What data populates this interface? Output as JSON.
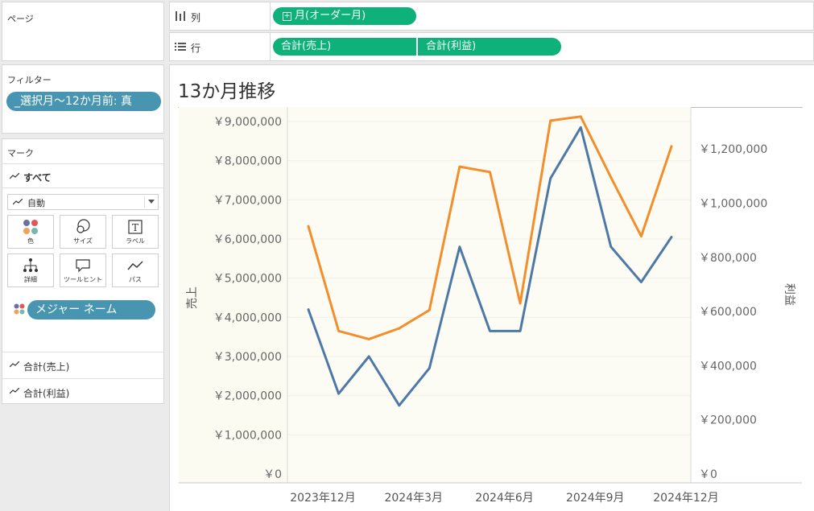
{
  "pages": {
    "title": "ページ"
  },
  "columns_shelf": {
    "label": "列",
    "pills": [
      "月(オーダー月)"
    ]
  },
  "rows_shelf": {
    "label": "行",
    "pills": [
      "合計(売上)",
      "合計(利益)"
    ]
  },
  "filters": {
    "title": "フィルター",
    "pill": "_選択月～12か月前: 真"
  },
  "marks": {
    "title": "マーク",
    "all_label": "すべて",
    "mark_type": "自動",
    "buttons": [
      {
        "label": "色",
        "icon": "color-icon"
      },
      {
        "label": "サイズ",
        "icon": "size-icon"
      },
      {
        "label": "ラベル",
        "icon": "label-icon"
      },
      {
        "label": "詳細",
        "icon": "detail-icon"
      },
      {
        "label": "ツールヒント",
        "icon": "tooltip-icon"
      },
      {
        "label": "パス",
        "icon": "path-icon"
      }
    ],
    "color_pill": "メジャー ネーム",
    "measure_rows": [
      "合計(売上)",
      "合計(利益)"
    ]
  },
  "chart_data": {
    "type": "line",
    "title": "13か月推移",
    "xlabel": "",
    "ylabel_left": "売上",
    "ylabel_right": "利益",
    "x": [
      "2023-12",
      "2024-01",
      "2024-02",
      "2024-03",
      "2024-04",
      "2024-05",
      "2024-06",
      "2024-07",
      "2024-08",
      "2024-09",
      "2024-10",
      "2024-11",
      "2024-12"
    ],
    "x_tick_labels": [
      {
        "x": "2023-12",
        "label": "2023年12月"
      },
      {
        "x": "2024-03",
        "label": "2024年3月"
      },
      {
        "x": "2024-06",
        "label": "2024年6月"
      },
      {
        "x": "2024-09",
        "label": "2024年9月"
      },
      {
        "x": "2024-12",
        "label": "2024年12月"
      }
    ],
    "y_left_ticks": [
      "￥0",
      "￥1,000,000",
      "￥2,000,000",
      "￥3,000,000",
      "￥4,000,000",
      "￥5,000,000",
      "￥6,000,000",
      "￥7,000,000",
      "￥8,000,000",
      "￥9,000,000"
    ],
    "y_right_ticks": [
      "￥0",
      "￥200,000",
      "￥400,000",
      "￥600,000",
      "￥800,000",
      "￥1,000,000",
      "￥1,200,000"
    ],
    "ylim_left": [
      0,
      9000000
    ],
    "ylim_right": [
      0,
      1340000
    ],
    "series": [
      {
        "axis": "left",
        "color": "#4e79a7",
        "values": [
          4200000,
          2050000,
          3000000,
          1750000,
          2700000,
          5800000,
          3650000,
          3650000,
          7550000,
          8850000,
          5800000,
          4900000,
          6050000
        ]
      },
      {
        "axis": "right",
        "color": "#f28e2b",
        "values": [
          915000,
          528000,
          498000,
          538000,
          605000,
          1135000,
          1115000,
          630000,
          1305000,
          1320000,
          1095000,
          878000,
          1210000
        ]
      }
    ]
  }
}
